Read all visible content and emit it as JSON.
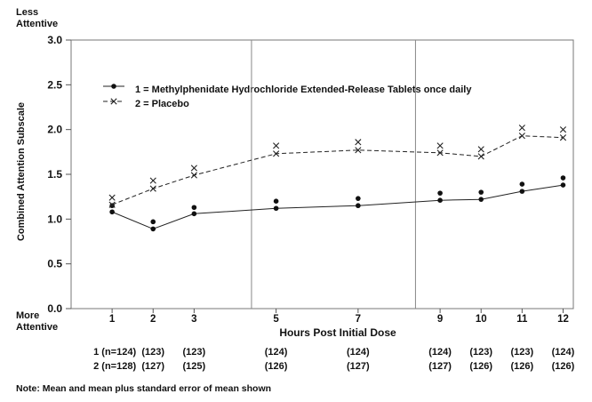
{
  "chart_data": {
    "type": "line",
    "ylabel": "Combined Attention Subscale",
    "xlabel": "Hours Post Initial Dose",
    "ylim": [
      0,
      3.0
    ],
    "yticks": [
      "0.0",
      "0.5",
      "1.0",
      "1.5",
      "2.0",
      "2.5",
      "3.0"
    ],
    "x": [
      1,
      2,
      3,
      5,
      7,
      9,
      10,
      11,
      12
    ],
    "xtick_labels": [
      "1",
      "2",
      "3",
      "5",
      "7",
      "9",
      "10",
      "11",
      "12"
    ],
    "y_top_label": [
      "Less",
      "Attentive"
    ],
    "y_bottom_label": [
      "More",
      "Attentive"
    ],
    "vertical_lines_x": [
      4.4,
      8.4
    ],
    "series": [
      {
        "name": "1 = Methylphenidate Hydrochloride Extended-Release Tablets once daily",
        "marker": "dot",
        "line": "solid",
        "mean": [
          1.08,
          0.89,
          1.06,
          1.12,
          1.15,
          1.21,
          1.22,
          1.31,
          1.38
        ],
        "mean_plus_se": [
          1.15,
          0.97,
          1.13,
          1.2,
          1.23,
          1.29,
          1.3,
          1.39,
          1.46
        ]
      },
      {
        "name": "2 = Placebo",
        "marker": "x",
        "line": "dashed",
        "mean": [
          1.16,
          1.34,
          1.49,
          1.73,
          1.77,
          1.74,
          1.7,
          1.93,
          1.91
        ],
        "mean_plus_se": [
          1.24,
          1.43,
          1.57,
          1.82,
          1.86,
          1.82,
          1.78,
          2.02,
          2.0
        ]
      }
    ],
    "sample_size_rows": [
      [
        "1 (n=124)",
        "(123)",
        "(123)",
        "(124)",
        "(124)",
        "(124)",
        "(123)",
        "(123)",
        "(124)"
      ],
      [
        "2 (n=128)",
        "(127)",
        "(125)",
        "(126)",
        "(127)",
        "(127)",
        "(126)",
        "(126)",
        "(126)"
      ]
    ],
    "note": "Note: Mean and mean plus standard error of mean shown"
  }
}
